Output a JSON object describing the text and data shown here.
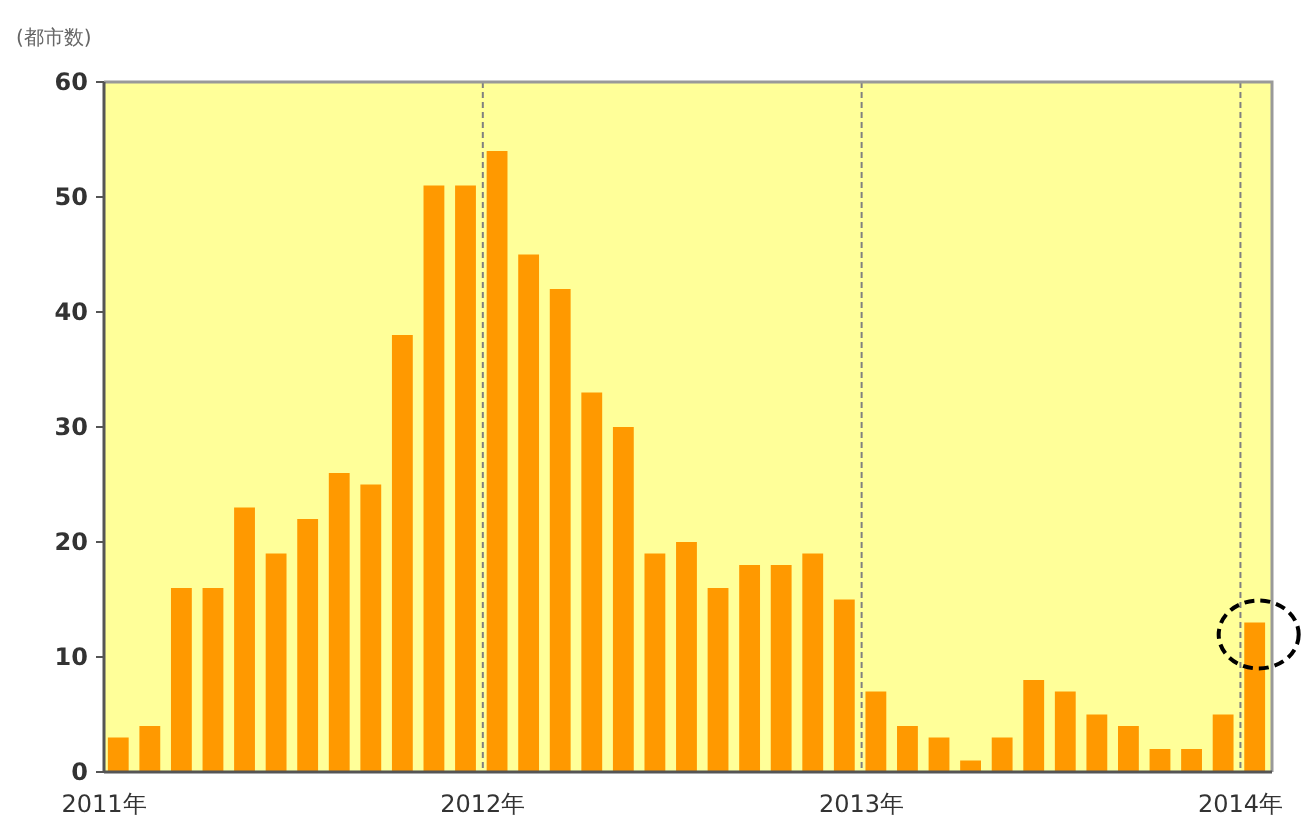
{
  "chart_data": {
    "type": "bar",
    "ylabel": "(都市数)",
    "x": [
      "2011-01-15",
      "2011-02-15",
      "2011-03-15",
      "2011-04-15",
      "2011-05-15",
      "2011-06-15",
      "2011-07-15",
      "2011-08-15",
      "2011-09-15",
      "2011-10-15",
      "2011-11-15",
      "2011-12-15",
      "2012-01-15",
      "2012-02-15",
      "2012-03-15",
      "2012-04-15",
      "2012-05-15",
      "2012-06-15",
      "2012-07-15",
      "2012-08-15",
      "2012-09-15",
      "2012-10-15",
      "2012-11-15",
      "2012-12-15",
      "2013-01-15",
      "2013-02-15",
      "2013-03-15",
      "2013-04-15",
      "2013-05-15",
      "2013-06-15",
      "2013-07-15",
      "2013-08-15",
      "2013-09-15",
      "2013-10-15",
      "2013-11-15",
      "2013-12-15",
      "2014-01-15"
    ],
    "values": [
      3,
      4,
      16,
      16,
      23,
      19,
      22,
      26,
      25,
      38,
      51,
      51,
      54,
      45,
      42,
      33,
      30,
      19,
      20,
      16,
      18,
      18,
      19,
      15,
      7,
      4,
      3,
      1,
      3,
      8,
      7,
      5,
      4,
      2,
      2,
      5,
      13
    ],
    "color": "#ff9900",
    "xlim": [
      "2011-01",
      "2014-02"
    ],
    "xticks": [
      {
        "value": "2011-01",
        "label": "2011年"
      },
      {
        "value": "2012-01",
        "label": "2012年"
      },
      {
        "value": "2013-01",
        "label": "2013年"
      },
      {
        "value": "2014-01",
        "label": "2014年"
      }
    ],
    "ylim": [
      0,
      60
    ],
    "yticks": [
      0,
      10,
      20,
      30,
      40,
      50,
      60
    ],
    "ref_lines": [
      {
        "axis": "x",
        "value": "2012-01",
        "color": "#808080",
        "line_style": "dashed"
      },
      {
        "axis": "x",
        "value": "2013-01",
        "color": "#808080",
        "line_style": "dashed"
      },
      {
        "axis": "x",
        "value": "2014-01",
        "color": "#808080",
        "line_style": "dashed"
      }
    ],
    "grid": false
  }
}
